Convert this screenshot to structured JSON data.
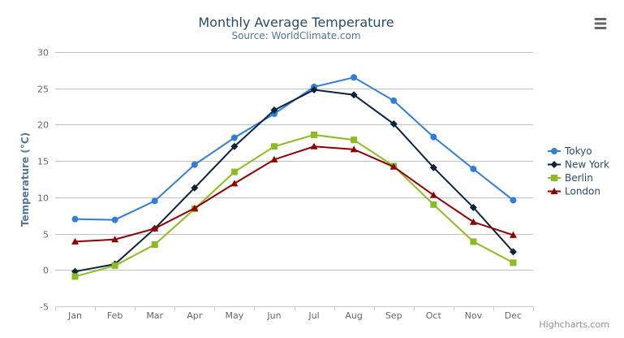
{
  "chart_data": {
    "type": "line",
    "title": "Monthly Average Temperature",
    "subtitle": "Source: WorldClimate.com",
    "xlabel": "",
    "ylabel": "Temperature (°C)",
    "ylim": [
      -5,
      30
    ],
    "yticks": [
      -5,
      0,
      5,
      10,
      15,
      20,
      25,
      30
    ],
    "grid": true,
    "legend_placement": "right",
    "categories": [
      "Jan",
      "Feb",
      "Mar",
      "Apr",
      "May",
      "Jun",
      "Jul",
      "Aug",
      "Sep",
      "Oct",
      "Nov",
      "Dec"
    ],
    "series": [
      {
        "name": "Tokyo",
        "color": "#2f7ed8",
        "marker": "circle",
        "values": [
          7.0,
          6.9,
          9.5,
          14.5,
          18.2,
          21.5,
          25.2,
          26.5,
          23.3,
          18.3,
          13.9,
          9.6
        ]
      },
      {
        "name": "New York",
        "color": "#0d233a",
        "marker": "diamond",
        "values": [
          -0.2,
          0.8,
          5.7,
          11.3,
          17.0,
          22.0,
          24.8,
          24.1,
          20.1,
          14.1,
          8.6,
          2.5
        ]
      },
      {
        "name": "Berlin",
        "color": "#8bbc21",
        "marker": "square",
        "values": [
          -0.9,
          0.6,
          3.5,
          8.4,
          13.5,
          17.0,
          18.6,
          17.9,
          14.3,
          9.0,
          3.9,
          1.0
        ]
      },
      {
        "name": "London",
        "color": "#910000",
        "marker": "triangle",
        "values": [
          3.9,
          4.2,
          5.7,
          8.5,
          11.9,
          15.2,
          17.0,
          16.6,
          14.2,
          10.3,
          6.6,
          4.8
        ]
      }
    ]
  },
  "menu_icon": "hamburger-menu-icon",
  "credits": "Highcharts.com"
}
